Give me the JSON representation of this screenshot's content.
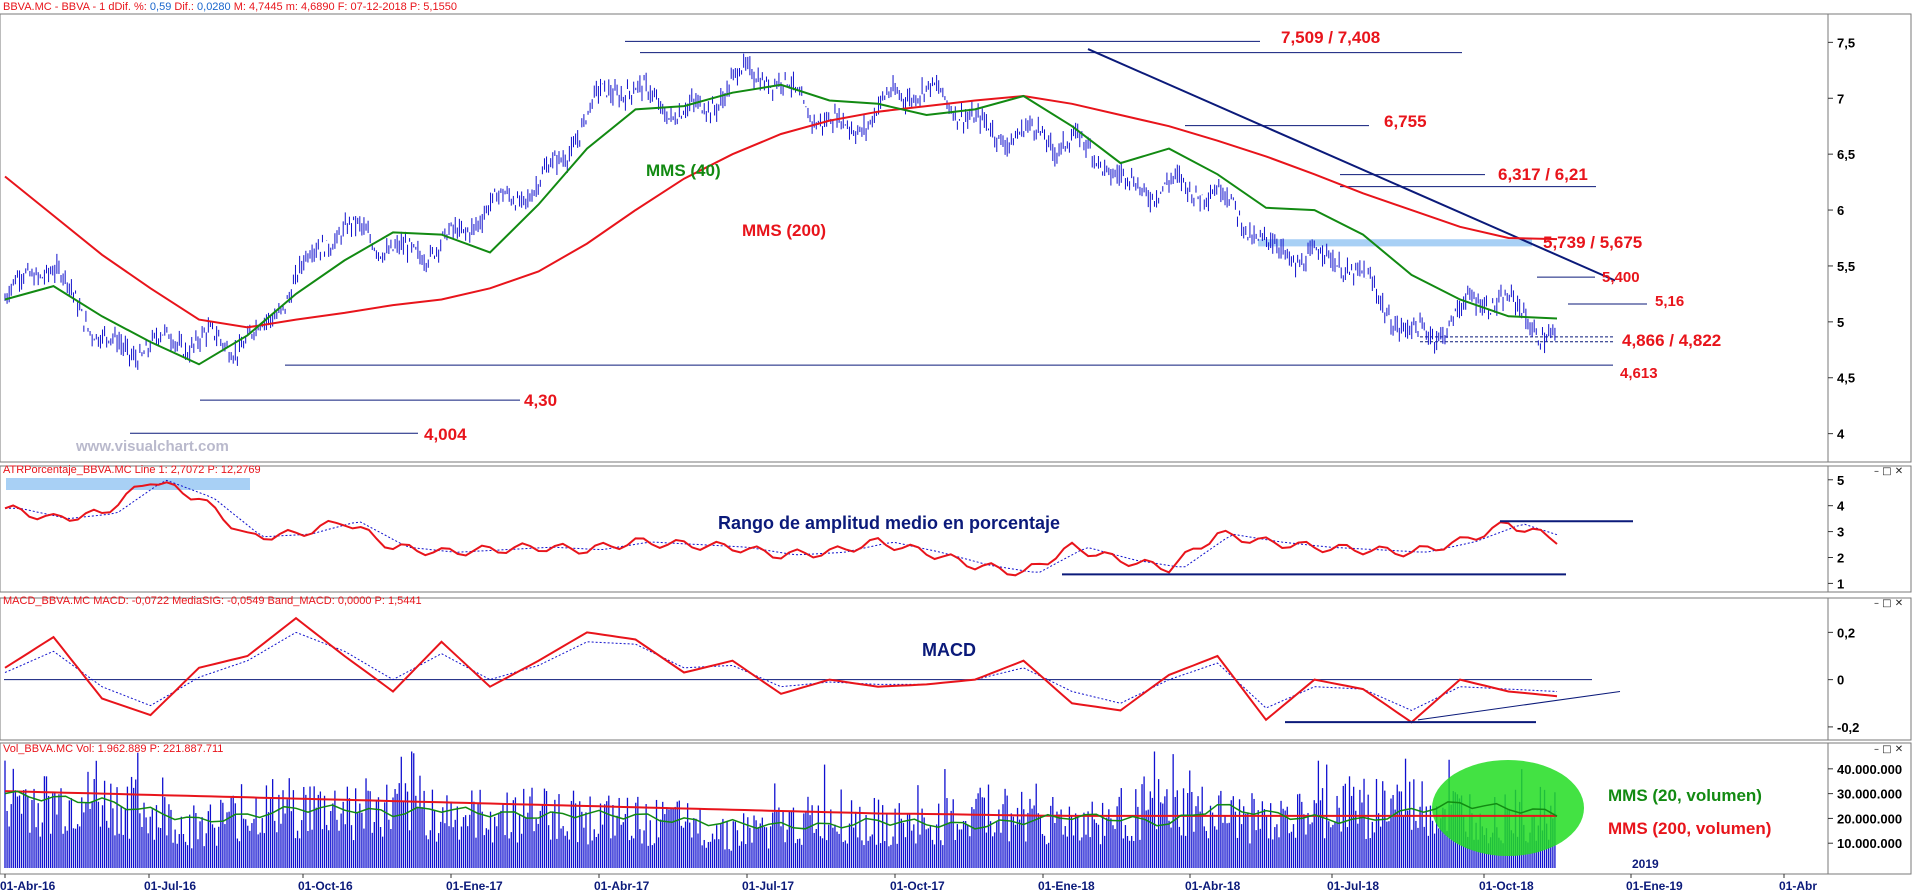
{
  "headers": {
    "price": {
      "name": "BBVA.MC - BBVA - 1 d",
      "fields": [
        "Dif. %: ",
        "0,59",
        " Dif.: ",
        "0,0280",
        " M: 4,7445",
        " m: 4,6890",
        " F: 07-12-2018",
        " P: 5,1550"
      ]
    },
    "atr": {
      "name": "ATRPorcentaje_BBVA.MC",
      "fields": [
        " Line 1: 2,7072",
        " P: 12,2769"
      ]
    },
    "macd": {
      "name": "MACD_BBVA.MC",
      "fields": [
        " MACD: -0,0722",
        " MediaSIG: -0,0549",
        " Band_MACD: 0,0000",
        " P: 1,5441"
      ]
    },
    "vol": {
      "name": "Vol_BBVA.MC",
      "fields": [
        " Vol: 1.962.889",
        " P: 221.887.711"
      ]
    }
  },
  "watermark": "www.visualchart.com",
  "pane_buttons": "– □ ✕",
  "annotations": {
    "mms40": "MMS (40)",
    "mms200": "MMS (200)",
    "r1": "7,509 / 7,408",
    "r2": "6,755",
    "r3": "6,317 / 6,21",
    "r4": "5,739 / 5,675",
    "r5": "5,400",
    "r6": "5,16",
    "r7": "4,866 / 4,822",
    "r8": "4,613",
    "s1": "4,30",
    "s2": "4,004",
    "atr_title": "Rango de amplitud medio en porcentaje",
    "macd_title": "MACD",
    "vol20": "MMS (20, volumen)",
    "vol200": "MMS (200, volumen)",
    "year": "2019"
  },
  "colors": {
    "price": "#1111cc",
    "mms40": "#128a12",
    "mms200": "#e8141b",
    "highlight": "#a8d0f5",
    "trend": "#0b1a7a",
    "volume": "#1010d0",
    "vol_ellipse": "#22dd22"
  },
  "chart_data": [
    {
      "type": "line",
      "panel": "price",
      "title": "BBVA.MC - BBVA - 1 d",
      "x_ticks": [
        "01-Abr-16",
        "01-Jul-16",
        "01-Oct-16",
        "01-Ene-17",
        "01-Abr-17",
        "01-Jul-17",
        "01-Oct-17",
        "01-Ene-18",
        "01-Abr-18",
        "01-Jul-18",
        "01-Oct-18",
        "01-Ene-19",
        "01-Abr"
      ],
      "y_ticks": [
        "4",
        "4,5",
        "5",
        "5,5",
        "6",
        "6,5",
        "7",
        "7,5"
      ],
      "ylim": [
        3.8,
        7.7
      ],
      "x_months": [
        "2016-04",
        "2016-05",
        "2016-06",
        "2016-07",
        "2016-08",
        "2016-09",
        "2016-10",
        "2016-11",
        "2016-12",
        "2017-01",
        "2017-02",
        "2017-03",
        "2017-04",
        "2017-05",
        "2017-06",
        "2017-07",
        "2017-08",
        "2017-09",
        "2017-10",
        "2017-11",
        "2017-12",
        "2018-01",
        "2018-02",
        "2018-03",
        "2018-04",
        "2018-05",
        "2018-06",
        "2018-07",
        "2018-08",
        "2018-09",
        "2018-10",
        "2018-11",
        "2018-12"
      ],
      "series": [
        {
          "name": "MMS (40)",
          "values": [
            5.2,
            5.32,
            5.05,
            4.82,
            4.62,
            4.88,
            5.25,
            5.55,
            5.8,
            5.78,
            5.62,
            6.05,
            6.55,
            6.9,
            6.93,
            7.05,
            7.12,
            6.98,
            6.95,
            6.85,
            6.9,
            7.02,
            6.75,
            6.42,
            6.55,
            6.32,
            6.02,
            6.0,
            5.78,
            5.42,
            5.2,
            5.05,
            5.03
          ]
        },
        {
          "name": "MMS (200)",
          "values": [
            6.3,
            5.95,
            5.6,
            5.3,
            5.02,
            4.95,
            5.02,
            5.08,
            5.15,
            5.2,
            5.3,
            5.45,
            5.7,
            6.0,
            6.28,
            6.5,
            6.68,
            6.8,
            6.88,
            6.93,
            6.98,
            7.02,
            6.95,
            6.85,
            6.75,
            6.62,
            6.48,
            6.32,
            6.15,
            6.0,
            5.85,
            5.75,
            5.74
          ]
        }
      ],
      "levels": [
        7.509,
        7.408,
        6.755,
        6.317,
        6.21,
        5.739,
        5.675,
        5.4,
        5.16,
        4.866,
        4.822,
        4.613,
        4.3,
        4.004
      ]
    },
    {
      "type": "line",
      "panel": "atr",
      "title": "ATRPorcentaje_BBVA.MC",
      "y_ticks": [
        "1",
        "2",
        "3",
        "4",
        "5"
      ],
      "ylim": [
        0.9,
        5.3
      ],
      "x_months": [
        "2016-04",
        "2016-05",
        "2016-06",
        "2016-07",
        "2016-08",
        "2016-09",
        "2016-10",
        "2016-11",
        "2016-12",
        "2017-01",
        "2017-02",
        "2017-03",
        "2017-04",
        "2017-05",
        "2017-06",
        "2017-07",
        "2017-08",
        "2017-09",
        "2017-10",
        "2017-11",
        "2017-12",
        "2018-01",
        "2018-02",
        "2018-03",
        "2018-04",
        "2018-05",
        "2018-06",
        "2018-07",
        "2018-08",
        "2018-09",
        "2018-10",
        "2018-11",
        "2018-12"
      ],
      "series": [
        {
          "name": "Line 1",
          "values": [
            3.9,
            3.5,
            3.7,
            5.0,
            4.3,
            2.8,
            2.9,
            3.4,
            2.4,
            2.2,
            2.3,
            2.4,
            2.3,
            2.6,
            2.5,
            2.4,
            2.1,
            2.2,
            2.6,
            2.2,
            1.7,
            1.4,
            2.4,
            1.9,
            1.6,
            2.9,
            2.6,
            2.4,
            2.3,
            2.2,
            2.6,
            3.3,
            2.7
          ]
        }
      ]
    },
    {
      "type": "line",
      "panel": "macd",
      "title": "MACD_BBVA.MC",
      "y_ticks": [
        "-0,2",
        "0",
        "0,2"
      ],
      "ylim": [
        -0.23,
        0.32
      ],
      "x_months": [
        "2016-04",
        "2016-05",
        "2016-06",
        "2016-07",
        "2016-08",
        "2016-09",
        "2016-10",
        "2016-11",
        "2016-12",
        "2017-01",
        "2017-02",
        "2017-03",
        "2017-04",
        "2017-05",
        "2017-06",
        "2017-07",
        "2017-08",
        "2017-09",
        "2017-10",
        "2017-11",
        "2017-12",
        "2018-01",
        "2018-02",
        "2018-03",
        "2018-04",
        "2018-05",
        "2018-06",
        "2018-07",
        "2018-08",
        "2018-09",
        "2018-10",
        "2018-11",
        "2018-12"
      ],
      "series": [
        {
          "name": "MACD",
          "values": [
            0.05,
            0.18,
            -0.08,
            -0.15,
            0.05,
            0.1,
            0.26,
            0.1,
            -0.05,
            0.16,
            -0.03,
            0.08,
            0.2,
            0.17,
            0.03,
            0.08,
            -0.06,
            0.0,
            -0.03,
            -0.02,
            0.0,
            0.08,
            -0.1,
            -0.13,
            0.02,
            0.1,
            -0.17,
            0.0,
            -0.04,
            -0.18,
            0.0,
            -0.05,
            -0.07
          ]
        },
        {
          "name": "MediaSIG",
          "values": [
            0.03,
            0.12,
            -0.03,
            -0.11,
            0.01,
            0.08,
            0.2,
            0.12,
            0.0,
            0.11,
            0.0,
            0.06,
            0.16,
            0.15,
            0.05,
            0.06,
            -0.03,
            -0.01,
            -0.02,
            -0.02,
            0.0,
            0.05,
            -0.05,
            -0.1,
            0.0,
            0.07,
            -0.12,
            -0.03,
            -0.04,
            -0.13,
            -0.03,
            -0.04,
            -0.05
          ]
        }
      ],
      "levels": [
        0.0
      ]
    },
    {
      "type": "bar",
      "panel": "volume",
      "title": "Vol_BBVA.MC",
      "y_ticks": [
        "10.000.000",
        "20.000.000",
        "30.000.000",
        "40.000.000"
      ],
      "ylim": [
        0,
        48000000
      ],
      "x_months": [
        "2016-04",
        "2016-05",
        "2016-06",
        "2016-07",
        "2016-08",
        "2016-09",
        "2016-10",
        "2016-11",
        "2016-12",
        "2017-01",
        "2017-02",
        "2017-03",
        "2017-04",
        "2017-05",
        "2017-06",
        "2017-07",
        "2017-08",
        "2017-09",
        "2017-10",
        "2017-11",
        "2017-12",
        "2018-01",
        "2018-02",
        "2018-03",
        "2018-04",
        "2018-05",
        "2018-06",
        "2018-07",
        "2018-08",
        "2018-09",
        "2018-10",
        "2018-11",
        "2018-12"
      ],
      "series": [
        {
          "name": "Vol",
          "values": [
            30000000,
            26000000,
            27000000,
            24000000,
            17000000,
            21000000,
            25000000,
            24000000,
            23000000,
            25000000,
            21000000,
            22000000,
            23000000,
            20000000,
            19000000,
            18000000,
            15000000,
            17000000,
            21000000,
            19000000,
            17000000,
            20000000,
            22000000,
            20000000,
            19000000,
            25000000,
            23000000,
            20000000,
            18000000,
            24000000,
            26000000,
            25000000,
            22000000
          ]
        },
        {
          "name": "MMS (20, volumen)",
          "values": [
            30000000,
            28000000,
            27000000,
            23000000,
            19000000,
            21000000,
            24000000,
            24000000,
            22000000,
            24000000,
            22000000,
            21000000,
            22000000,
            21000000,
            19000000,
            18000000,
            17000000,
            17000000,
            19000000,
            18000000,
            17000000,
            19000000,
            21000000,
            20000000,
            18000000,
            25000000,
            22000000,
            20000000,
            19000000,
            23000000,
            26000000,
            24000000,
            22000000
          ]
        },
        {
          "name": "MMS (200, volumen)",
          "values": [
            31000000,
            30500000,
            30000000,
            29500000,
            29000000,
            28500000,
            28000000,
            27500000,
            27000000,
            26500000,
            26000000,
            25500000,
            25000000,
            24500000,
            24000000,
            23500000,
            23000000,
            22500000,
            22000000,
            21800000,
            21500000,
            21200000,
            21000000,
            21000000,
            21000000,
            21000000,
            21000000,
            21000000,
            21000000,
            21000000,
            21000000,
            21000000,
            21000000
          ]
        }
      ]
    }
  ]
}
